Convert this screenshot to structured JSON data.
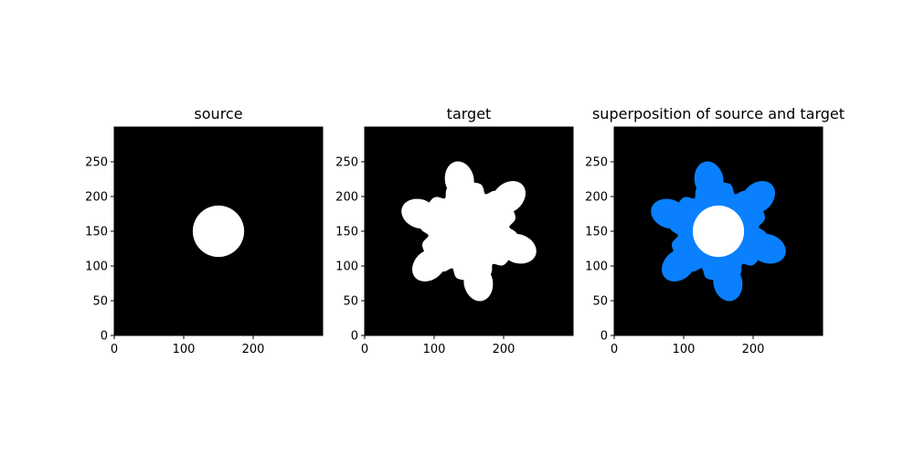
{
  "colors": {
    "background": "#000000",
    "shape": "#ffffff",
    "overlay": "#0a80ff",
    "axis": "#000000"
  },
  "chart_data": [
    {
      "type": "image",
      "title": "source",
      "xlim": [
        0,
        300
      ],
      "ylim": [
        0,
        300
      ],
      "xticks": [
        0,
        100,
        200
      ],
      "yticks": [
        0,
        50,
        100,
        150,
        200,
        250
      ],
      "shape": {
        "kind": "disk",
        "center": [
          150,
          150
        ],
        "radius": 37
      }
    },
    {
      "type": "image",
      "title": "target",
      "xlim": [
        0,
        300
      ],
      "ylim": [
        0,
        300
      ],
      "xticks": [
        0,
        100,
        200
      ],
      "yticks": [
        0,
        50,
        100,
        150,
        200,
        250
      ],
      "shape": {
        "kind": "gear",
        "center": [
          150,
          150
        ],
        "lobes": 6,
        "inner_radius": 65,
        "outer_radius": 102,
        "rotation_deg": 24
      }
    },
    {
      "type": "image",
      "title": "superposition of source and target",
      "xlim": [
        0,
        300
      ],
      "ylim": [
        0,
        300
      ],
      "xticks": [
        0,
        100,
        200
      ],
      "yticks": [
        0,
        50,
        100,
        150,
        200,
        250
      ],
      "shape": {
        "kind": "gear",
        "center": [
          150,
          150
        ],
        "lobes": 6,
        "inner_radius": 65,
        "outer_radius": 102,
        "rotation_deg": 24
      },
      "overlay": {
        "kind": "disk",
        "center": [
          150,
          150
        ],
        "radius": 37
      }
    }
  ]
}
